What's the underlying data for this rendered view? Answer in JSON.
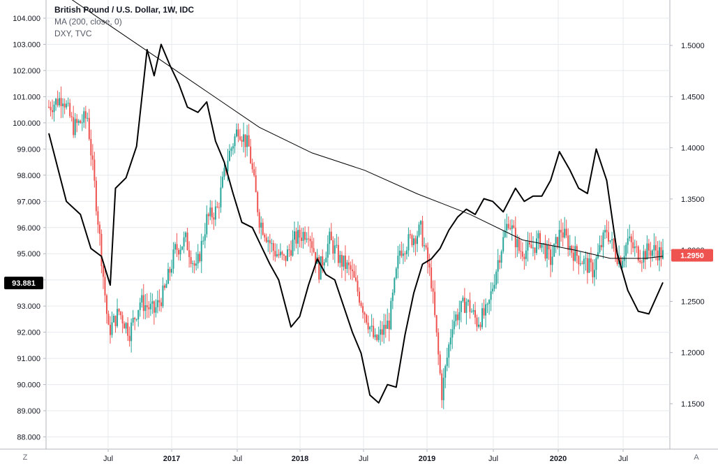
{
  "legend": {
    "line1": "British Pound / U.S. Dollar, 1W, IDC",
    "line2": "MA (200, close, 0)",
    "line3": "DXY, TVC"
  },
  "corner_left": "Z",
  "corner_right": "A",
  "colors": {
    "up": "#26a69a",
    "down": "#ef5350",
    "dxy": "#000000",
    "ma": "#000000",
    "grid": "#e6e9ee",
    "tag_dxy": "#000000",
    "tag_gbp": "#ef5350"
  },
  "chart_data": {
    "type": "line",
    "title": "British Pound / U.S. Dollar, 1W, IDC",
    "x_labels": [
      "Jul",
      "2017",
      "Jul",
      "2018",
      "Jul",
      "2019",
      "Jul",
      "2020",
      "Jul"
    ],
    "left_axis": {
      "label": "DXY",
      "ticks": [
        "104.000",
        "103.000",
        "102.000",
        "101.000",
        "100.000",
        "99.000",
        "98.000",
        "97.000",
        "96.000",
        "95.000",
        "94.000",
        "93.000",
        "92.000",
        "91.000",
        "90.000",
        "89.000",
        "88.000"
      ],
      "range": [
        87.6,
        104.5
      ],
      "current": "93.881"
    },
    "right_axis": {
      "label": "GBPUSD",
      "ticks": [
        "1.5000",
        "1.4500",
        "1.4000",
        "1.3500",
        "1.3000",
        "1.2500",
        "1.2000",
        "1.1500"
      ],
      "range": [
        1.0958,
        1.5455
      ],
      "current": "1.2950"
    },
    "series": [
      {
        "name": "DXY, TVC",
        "type": "line",
        "axis": "left",
        "x": [
          0,
          10,
          18,
          24,
          30,
          35,
          38,
          44,
          50,
          56,
          60,
          64,
          69,
          74,
          79,
          85,
          90,
          95,
          100,
          105,
          110,
          116,
          121,
          126,
          131,
          138,
          143,
          148,
          153,
          158,
          163,
          168,
          173,
          178,
          183,
          188,
          193,
          198,
          203,
          208,
          213,
          218,
          223,
          228,
          233,
          238,
          243,
          248,
          253,
          259,
          266,
          271,
          276,
          281,
          286,
          291,
          297,
          302,
          307,
          312,
          318,
          324,
          330,
          336,
          342,
          350
        ],
        "values": [
          99.6,
          97.0,
          96.5,
          95.2,
          94.9,
          93.8,
          97.5,
          97.9,
          99.1,
          102.8,
          101.8,
          103.0,
          102.2,
          101.5,
          100.6,
          100.4,
          100.8,
          99.3,
          98.5,
          97.3,
          96.2,
          96.0,
          95.3,
          94.6,
          94.0,
          92.2,
          92.6,
          93.8,
          94.8,
          94.2,
          94.0,
          93.0,
          92.0,
          91.2,
          89.6,
          89.3,
          90.0,
          89.9,
          91.9,
          93.5,
          94.6,
          94.8,
          95.2,
          95.9,
          96.4,
          96.7,
          96.5,
          97.1,
          97.0,
          96.6,
          97.5,
          97.0,
          97.2,
          97.2,
          97.8,
          98.9,
          98.2,
          97.5,
          97.3,
          99.0,
          97.8,
          95.0,
          93.6,
          92.8,
          92.7,
          93.9
        ]
      },
      {
        "name": "MA (200, close, 0)",
        "type": "line",
        "axis": "right",
        "x": [
          0,
          30,
          60,
          90,
          120,
          150,
          180,
          210,
          240,
          270,
          300,
          320,
          340,
          350
        ],
        "values": [
          1.56,
          1.525,
          1.49,
          1.455,
          1.42,
          1.395,
          1.378,
          1.355,
          1.335,
          1.31,
          1.3,
          1.292,
          1.292,
          1.294
        ]
      },
      {
        "name": "British Pound / U.S. Dollar",
        "type": "candlestick",
        "axis": "right",
        "x_start_week": 0,
        "x_end_week": 350,
        "anchors_week": [
          0,
          8,
          14,
          22,
          28,
          34,
          40,
          46,
          52,
          60,
          66,
          72,
          78,
          84,
          90,
          96,
          102,
          108,
          114,
          120,
          128,
          134,
          140,
          148,
          154,
          160,
          166,
          172,
          178,
          186,
          194,
          200,
          206,
          212,
          218,
          224,
          230,
          238,
          244,
          250,
          256,
          262,
          268,
          274,
          280,
          286,
          292,
          298,
          304,
          310,
          314,
          318,
          322,
          326,
          330,
          334,
          338,
          342,
          346,
          350
        ],
        "anchors_close": [
          1.44,
          1.45,
          1.42,
          1.43,
          1.33,
          1.22,
          1.24,
          1.22,
          1.25,
          1.24,
          1.26,
          1.3,
          1.31,
          1.28,
          1.33,
          1.34,
          1.39,
          1.42,
          1.4,
          1.33,
          1.3,
          1.29,
          1.31,
          1.32,
          1.28,
          1.31,
          1.29,
          1.28,
          1.25,
          1.21,
          1.23,
          1.3,
          1.31,
          1.32,
          1.27,
          1.16,
          1.23,
          1.25,
          1.23,
          1.24,
          1.29,
          1.33,
          1.3,
          1.3,
          1.31,
          1.29,
          1.32,
          1.3,
          1.29,
          1.28,
          1.3,
          1.32,
          1.3,
          1.29,
          1.31,
          1.3,
          1.295,
          1.3,
          1.3,
          1.295
        ]
      }
    ],
    "grid": true
  }
}
